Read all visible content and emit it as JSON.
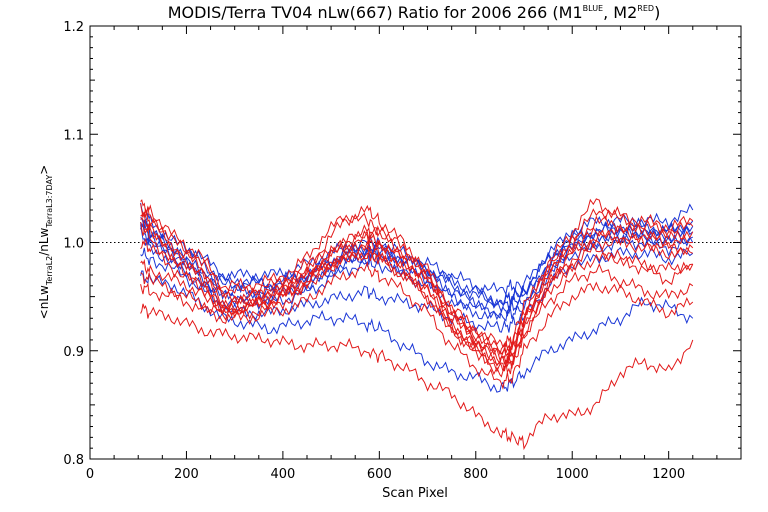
{
  "chart_data": {
    "type": "line",
    "title_main": "MODIS/Terra TV04 nLw(667) Ratio for 2006 266 (M1",
    "title_sup1": "BLUE",
    "title_mid": ", M2",
    "title_sup2": "RED",
    "title_end": ")",
    "xlabel": "Scan Pixel",
    "ylabel_parts": [
      "<nLw",
      "TerraL2",
      "/nLw",
      "TerraL3:7DAY",
      ">"
    ],
    "xlim": [
      0,
      1350
    ],
    "ylim": [
      0.8,
      1.2
    ],
    "x_ticks": [
      "0",
      "200",
      "400",
      "600",
      "800",
      "1000",
      "1200"
    ],
    "y_ticks": [
      "0.8",
      "0.9",
      "1.0",
      "1.1",
      "1.2"
    ],
    "reference_line": 1.0,
    "colors": {
      "M1": "#1a36d6",
      "M2": "#e21a1a"
    },
    "x": [
      105,
      125,
      175,
      225,
      275,
      325,
      375,
      425,
      475,
      525,
      575,
      600,
      650,
      700,
      750,
      800,
      850,
      875,
      900,
      950,
      1000,
      1050,
      1100,
      1150,
      1200,
      1250
    ],
    "series": [
      {
        "group": "M1",
        "values": [
          1.03,
          1.02,
          1.0,
          0.99,
          0.97,
          0.97,
          0.97,
          0.975,
          0.985,
          0.995,
          1.0,
          1.0,
          0.99,
          0.98,
          0.97,
          0.96,
          0.955,
          0.96,
          0.96,
          0.99,
          1.01,
          1.02,
          1.02,
          1.02,
          1.02,
          1.03
        ]
      },
      {
        "group": "M1",
        "values": [
          1.025,
          1.01,
          0.995,
          0.985,
          0.965,
          0.965,
          0.96,
          0.965,
          0.975,
          0.99,
          0.995,
          0.995,
          0.985,
          0.975,
          0.965,
          0.955,
          0.945,
          0.95,
          0.955,
          0.985,
          1.005,
          1.01,
          1.015,
          1.015,
          1.01,
          1.02
        ]
      },
      {
        "group": "M1",
        "values": [
          1.02,
          1.005,
          0.99,
          0.975,
          0.955,
          0.955,
          0.955,
          0.96,
          0.97,
          0.985,
          0.99,
          0.99,
          0.98,
          0.97,
          0.955,
          0.945,
          0.94,
          0.945,
          0.95,
          0.98,
          1.0,
          1.005,
          1.01,
          1.01,
          1.005,
          1.01
        ]
      },
      {
        "group": "M1",
        "values": [
          1.015,
          1.0,
          0.985,
          0.97,
          0.95,
          0.95,
          0.95,
          0.955,
          0.965,
          0.98,
          0.985,
          0.985,
          0.975,
          0.965,
          0.95,
          0.94,
          0.935,
          0.94,
          0.945,
          0.975,
          0.995,
          1.0,
          1.005,
          1.005,
          1.0,
          1.005
        ]
      },
      {
        "group": "M1",
        "values": [
          1.01,
          0.995,
          0.98,
          0.965,
          0.945,
          0.945,
          0.945,
          0.95,
          0.96,
          0.975,
          0.98,
          0.98,
          0.97,
          0.96,
          0.945,
          0.935,
          0.93,
          0.935,
          0.94,
          0.97,
          0.99,
          0.995,
          1.0,
          1.0,
          0.995,
          1.0
        ]
      },
      {
        "group": "M1",
        "values": [
          1.02,
          1.01,
          0.99,
          0.975,
          0.96,
          0.962,
          0.962,
          0.968,
          0.975,
          0.99,
          0.992,
          0.99,
          0.985,
          0.975,
          0.96,
          0.95,
          0.945,
          0.95,
          0.955,
          0.985,
          1.0,
          1.01,
          1.012,
          1.01,
          1.01,
          1.015
        ]
      },
      {
        "group": "M1",
        "values": [
          0.99,
          0.985,
          0.975,
          0.96,
          0.94,
          0.935,
          0.935,
          0.94,
          0.945,
          0.95,
          0.955,
          0.95,
          0.945,
          0.94,
          0.93,
          0.925,
          0.92,
          0.925,
          0.93,
          0.96,
          0.98,
          0.985,
          0.99,
          0.99,
          0.985,
          0.99
        ]
      },
      {
        "group": "M1",
        "values": [
          0.97,
          0.965,
          0.96,
          0.945,
          0.93,
          0.925,
          0.92,
          0.925,
          0.93,
          0.93,
          0.925,
          0.92,
          0.905,
          0.89,
          0.88,
          0.875,
          0.865,
          0.87,
          0.88,
          0.9,
          0.91,
          0.92,
          0.93,
          0.945,
          0.94,
          0.93
        ]
      },
      {
        "group": "M2",
        "values": [
          1.03,
          1.025,
          1.0,
          0.985,
          0.955,
          0.955,
          0.96,
          0.97,
          0.99,
          1.02,
          1.03,
          1.02,
          1.0,
          0.975,
          0.94,
          0.92,
          0.905,
          0.91,
          0.94,
          0.98,
          1.01,
          1.04,
          1.02,
          1.015,
          1.01,
          1.015
        ]
      },
      {
        "group": "M2",
        "values": [
          1.03,
          1.02,
          0.995,
          0.98,
          0.95,
          0.95,
          0.955,
          0.965,
          0.985,
          1.0,
          1.01,
          1.01,
          0.99,
          0.97,
          0.935,
          0.915,
          0.9,
          0.905,
          0.935,
          0.975,
          1.0,
          1.02,
          1.015,
          1.01,
          1.005,
          1.01
        ]
      },
      {
        "group": "M2",
        "values": [
          1.025,
          1.015,
          0.99,
          0.975,
          0.945,
          0.945,
          0.95,
          0.96,
          0.98,
          0.995,
          1.005,
          1.0,
          0.985,
          0.965,
          0.93,
          0.91,
          0.895,
          0.9,
          0.93,
          0.97,
          0.995,
          1.01,
          1.01,
          1.005,
          1.0,
          1.0
        ]
      },
      {
        "group": "M2",
        "values": [
          1.02,
          1.01,
          0.985,
          0.97,
          0.94,
          0.94,
          0.945,
          0.955,
          0.975,
          0.99,
          1.0,
          0.995,
          0.98,
          0.96,
          0.925,
          0.905,
          0.89,
          0.895,
          0.925,
          0.965,
          0.99,
          1.005,
          1.005,
          1.0,
          0.995,
          0.995
        ]
      },
      {
        "group": "M2",
        "values": [
          1.015,
          1.005,
          0.98,
          0.965,
          0.935,
          0.935,
          0.94,
          0.95,
          0.97,
          0.985,
          0.995,
          0.99,
          0.975,
          0.955,
          0.92,
          0.9,
          0.885,
          0.89,
          0.92,
          0.96,
          0.985,
          1.0,
          1.0,
          0.995,
          0.99,
          0.99
        ]
      },
      {
        "group": "M2",
        "values": [
          1.0,
          0.995,
          0.975,
          0.96,
          0.935,
          0.94,
          0.95,
          0.96,
          0.975,
          0.985,
          0.99,
          0.985,
          0.97,
          0.95,
          0.92,
          0.9,
          0.88,
          0.885,
          0.915,
          0.955,
          0.975,
          0.985,
          0.985,
          0.98,
          0.975,
          0.98
        ]
      },
      {
        "group": "M2",
        "values": [
          0.98,
          0.975,
          0.965,
          0.955,
          0.94,
          0.945,
          0.955,
          0.965,
          0.98,
          1.0,
          1.01,
          1.0,
          0.985,
          0.965,
          0.935,
          0.915,
          0.9,
          0.905,
          0.93,
          0.96,
          0.98,
          0.995,
          0.985,
          0.975,
          0.965,
          0.98
        ]
      },
      {
        "group": "M2",
        "values": [
          0.97,
          0.965,
          0.955,
          0.945,
          0.935,
          0.94,
          0.945,
          0.955,
          0.97,
          0.985,
          0.99,
          0.985,
          0.97,
          0.95,
          0.92,
          0.9,
          0.885,
          0.89,
          0.915,
          0.945,
          0.965,
          0.975,
          0.965,
          0.955,
          0.95,
          0.96
        ]
      },
      {
        "group": "M2",
        "values": [
          0.96,
          0.955,
          0.95,
          0.94,
          0.93,
          0.93,
          0.935,
          0.94,
          0.955,
          0.97,
          0.975,
          0.97,
          0.955,
          0.935,
          0.905,
          0.885,
          0.87,
          0.875,
          0.9,
          0.93,
          0.95,
          0.96,
          0.955,
          0.945,
          0.935,
          0.945
        ]
      },
      {
        "group": "M2",
        "values": [
          0.94,
          0.935,
          0.93,
          0.92,
          0.915,
          0.912,
          0.91,
          0.905,
          0.905,
          0.905,
          0.9,
          0.895,
          0.885,
          0.87,
          0.86,
          0.84,
          0.825,
          0.82,
          0.815,
          0.84,
          0.84,
          0.85,
          0.88,
          0.89,
          0.88,
          0.91
        ]
      },
      {
        "group": "M2",
        "values": [
          1.035,
          1.03,
          1.005,
          0.99,
          0.96,
          0.96,
          0.965,
          0.975,
          1.0,
          1.025,
          1.02,
          1.01,
          0.995,
          0.97,
          0.935,
          0.91,
          0.89,
          0.895,
          0.925,
          0.975,
          1.0,
          1.03,
          1.025,
          1.02,
          1.015,
          1.02
        ]
      }
    ]
  }
}
